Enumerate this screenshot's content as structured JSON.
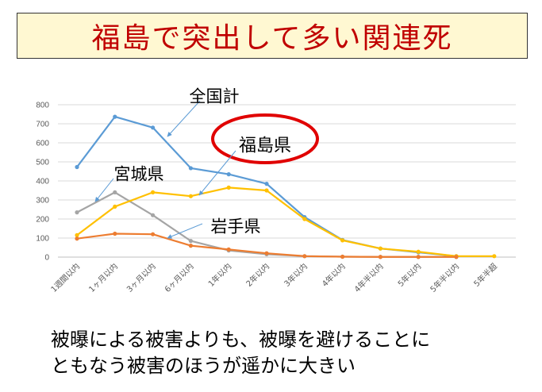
{
  "slide": {
    "title": "福島で突出して多い関連死",
    "caption_line1": "被曝による被害よりも、被曝を避けることに",
    "caption_line2": "ともなう被害のほうが遥かに大きい"
  },
  "colors": {
    "title_text": "#c00000",
    "title_bg": "#fff8d2",
    "highlight_circle": "#e00000"
  },
  "chart_data": {
    "type": "line",
    "categories": [
      "1週間以内",
      "1ヶ月以内",
      "3ヶ月以内",
      "6ヶ月以内",
      "1年以内",
      "2年以内",
      "3年以内",
      "4年以内",
      "4年半以内",
      "5年以内",
      "5年半以内",
      "5年半超"
    ],
    "ylim": [
      0,
      800
    ],
    "yticks": [
      0,
      100,
      200,
      300,
      400,
      500,
      600,
      700,
      800
    ],
    "grid": true,
    "series": [
      {
        "name": "全国計",
        "color": "#5b9bd5",
        "values": [
          473,
          737,
          680,
          467,
          435,
          385,
          210,
          90,
          45,
          25,
          5,
          null
        ]
      },
      {
        "name": "宮城県",
        "color": "#a5a5a5",
        "values": [
          235,
          340,
          220,
          85,
          35,
          15,
          5,
          2,
          1,
          1,
          1,
          null
        ]
      },
      {
        "name": "福島県",
        "color": "#ffc000",
        "values": [
          115,
          265,
          340,
          320,
          365,
          350,
          200,
          88,
          45,
          28,
          5,
          5
        ]
      },
      {
        "name": "岩手県",
        "color": "#ed7d31",
        "values": [
          97,
          123,
          120,
          60,
          40,
          20,
          5,
          2,
          1,
          1,
          1,
          null
        ]
      }
    ],
    "annotations": [
      {
        "label": "全国計"
      },
      {
        "label": "宮城県"
      },
      {
        "label": "福島県"
      },
      {
        "label": "岩手県"
      }
    ]
  }
}
